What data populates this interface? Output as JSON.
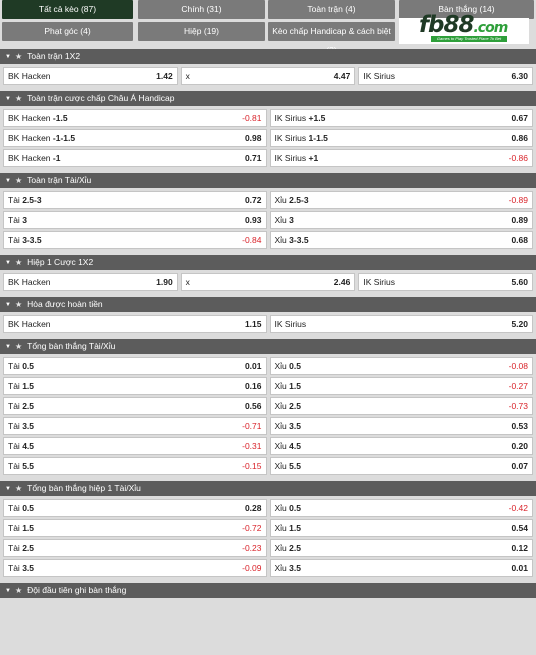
{
  "tabs": [
    {
      "label": "Tất cả kèo (87)",
      "active": true
    },
    {
      "label": "Chính (31)",
      "active": false
    },
    {
      "label": "Toàn trận (4)",
      "active": false
    },
    {
      "label": "Bàn thắng (14)",
      "active": false
    },
    {
      "label": "Phạt góc (4)",
      "active": false
    },
    {
      "label": "Hiệp (19)",
      "active": false
    },
    {
      "label": "Kèo chấp Handicap & cách biệt (3)",
      "active": false
    }
  ],
  "logo": {
    "text": "fb88",
    "suffix": ".com",
    "tagline": "Games to Play  Trusted Place To Bet"
  },
  "colors": {
    "active_tab": "#1f3a25",
    "tab": "#7a7a7a",
    "section_header": "#5c5c5c",
    "negative": "#d9232a"
  },
  "sections": [
    {
      "title": "Toàn trận 1X2",
      "rows": [
        [
          {
            "label": "BK Hacken",
            "odd": "1.42"
          },
          {
            "label": "x",
            "odd": "4.47"
          },
          {
            "label": "IK Sirius",
            "odd": "6.30"
          }
        ]
      ]
    },
    {
      "title": "Toàn trận cược chấp Châu Á Handicap",
      "rows": [
        [
          {
            "label": "BK Hacken",
            "hcp": "-1.5",
            "odd": "-0.81"
          },
          {
            "label": "IK Sirius",
            "hcp": "+1.5",
            "odd": "0.67"
          }
        ],
        [
          {
            "label": "BK Hacken",
            "hcp": "-1-1.5",
            "odd": "0.98"
          },
          {
            "label": "IK Sirius",
            "hcp": "1-1.5",
            "odd": "0.86"
          }
        ],
        [
          {
            "label": "BK Hacken",
            "hcp": "-1",
            "odd": "0.71"
          },
          {
            "label": "IK Sirius",
            "hcp": "+1",
            "odd": "-0.86"
          }
        ]
      ]
    },
    {
      "title": "Toàn trận Tài/Xỉu",
      "rows": [
        [
          {
            "label": "Tài",
            "hcp": "2.5-3",
            "odd": "0.72"
          },
          {
            "label": "Xỉu",
            "hcp": "2.5-3",
            "odd": "-0.89"
          }
        ],
        [
          {
            "label": "Tài",
            "hcp": "3",
            "odd": "0.93"
          },
          {
            "label": "Xỉu",
            "hcp": "3",
            "odd": "0.89"
          }
        ],
        [
          {
            "label": "Tài",
            "hcp": "3-3.5",
            "odd": "-0.84"
          },
          {
            "label": "Xỉu",
            "hcp": "3-3.5",
            "odd": "0.68"
          }
        ]
      ]
    },
    {
      "title": "Hiệp 1 Cược 1X2",
      "rows": [
        [
          {
            "label": "BK Hacken",
            "odd": "1.90"
          },
          {
            "label": "x",
            "odd": "2.46"
          },
          {
            "label": "IK Sirius",
            "odd": "5.60"
          }
        ]
      ]
    },
    {
      "title": "Hòa được hoàn tiền",
      "rows": [
        [
          {
            "label": "BK Hacken",
            "odd": "1.15"
          },
          {
            "label": "IK Sirius",
            "odd": "5.20"
          }
        ]
      ]
    },
    {
      "title": "Tổng bàn thắng Tài/Xỉu",
      "rows": [
        [
          {
            "label": "Tài",
            "hcp": "0.5",
            "odd": "0.01"
          },
          {
            "label": "Xỉu",
            "hcp": "0.5",
            "odd": "-0.08"
          }
        ],
        [
          {
            "label": "Tài",
            "hcp": "1.5",
            "odd": "0.16"
          },
          {
            "label": "Xỉu",
            "hcp": "1.5",
            "odd": "-0.27"
          }
        ],
        [
          {
            "label": "Tài",
            "hcp": "2.5",
            "odd": "0.56"
          },
          {
            "label": "Xỉu",
            "hcp": "2.5",
            "odd": "-0.73"
          }
        ],
        [
          {
            "label": "Tài",
            "hcp": "3.5",
            "odd": "-0.71"
          },
          {
            "label": "Xỉu",
            "hcp": "3.5",
            "odd": "0.53"
          }
        ],
        [
          {
            "label": "Tài",
            "hcp": "4.5",
            "odd": "-0.31"
          },
          {
            "label": "Xỉu",
            "hcp": "4.5",
            "odd": "0.20"
          }
        ],
        [
          {
            "label": "Tài",
            "hcp": "5.5",
            "odd": "-0.15"
          },
          {
            "label": "Xỉu",
            "hcp": "5.5",
            "odd": "0.07"
          }
        ]
      ]
    },
    {
      "title": "Tổng bàn thắng hiệp 1 Tài/Xỉu",
      "rows": [
        [
          {
            "label": "Tài",
            "hcp": "0.5",
            "odd": "0.28"
          },
          {
            "label": "Xỉu",
            "hcp": "0.5",
            "odd": "-0.42"
          }
        ],
        [
          {
            "label": "Tài",
            "hcp": "1.5",
            "odd": "-0.72"
          },
          {
            "label": "Xỉu",
            "hcp": "1.5",
            "odd": "0.54"
          }
        ],
        [
          {
            "label": "Tài",
            "hcp": "2.5",
            "odd": "-0.23"
          },
          {
            "label": "Xỉu",
            "hcp": "2.5",
            "odd": "0.12"
          }
        ],
        [
          {
            "label": "Tài",
            "hcp": "3.5",
            "odd": "-0.09"
          },
          {
            "label": "Xỉu",
            "hcp": "3.5",
            "odd": "0.01"
          }
        ]
      ]
    },
    {
      "title": "Đội đầu tiên ghi bàn thắng",
      "rows": []
    }
  ]
}
